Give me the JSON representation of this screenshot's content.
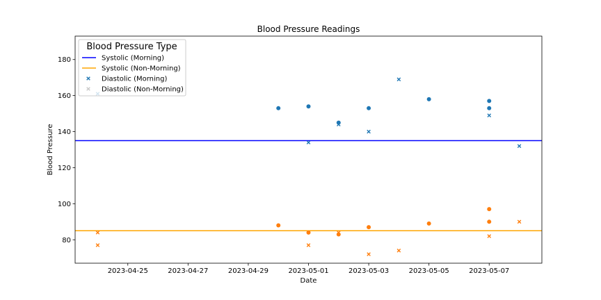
{
  "chart_data": {
    "type": "scatter",
    "title": "Blood Pressure Readings",
    "xlabel": "Date",
    "ylabel": "Blood Pressure",
    "xlim": [
      "2023-04-23 06:00",
      "2023-05-08 18:00"
    ],
    "ylim": [
      67,
      193
    ],
    "x_ticks": [
      "2023-04-25",
      "2023-04-27",
      "2023-04-29",
      "2023-05-01",
      "2023-05-03",
      "2023-05-05",
      "2023-05-07"
    ],
    "y_ticks": [
      80,
      100,
      120,
      140,
      160,
      180
    ],
    "grid": false,
    "legend": {
      "title": "Blood Pressure Type",
      "position": "top-left",
      "entries": [
        {
          "label": "Systolic (Morning)",
          "marker": "line",
          "color": "#0000ff"
        },
        {
          "label": "Systolic (Non-Morning)",
          "marker": "line",
          "color": "#ffa500"
        },
        {
          "label": "Diastolic (Morning)",
          "marker": "x",
          "color": "#1f77b4"
        },
        {
          "label": "Diastolic (Non-Morning)",
          "marker": "x",
          "color": "#c8c8c8"
        }
      ]
    },
    "reference_lines": [
      {
        "y": 135,
        "color": "#0000ff"
      },
      {
        "y": 85,
        "color": "#ffa500"
      }
    ],
    "series": [
      {
        "marker": "circle",
        "color": "#1f77b4",
        "points": [
          {
            "x": "2023-04-30",
            "y": 153
          },
          {
            "x": "2023-05-01",
            "y": 154
          },
          {
            "x": "2023-05-02",
            "y": 145
          },
          {
            "x": "2023-05-03",
            "y": 153
          },
          {
            "x": "2023-05-05",
            "y": 158
          },
          {
            "x": "2023-05-07",
            "y": 157
          },
          {
            "x": "2023-05-07",
            "y": 153
          }
        ]
      },
      {
        "marker": "x",
        "color": "#1f77b4",
        "points": [
          {
            "x": "2023-04-24",
            "y": 161
          },
          {
            "x": "2023-05-01",
            "y": 134
          },
          {
            "x": "2023-05-02",
            "y": 144
          },
          {
            "x": "2023-05-03",
            "y": 140
          },
          {
            "x": "2023-05-04",
            "y": 169
          },
          {
            "x": "2023-05-07",
            "y": 149
          },
          {
            "x": "2023-05-08",
            "y": 132
          }
        ]
      },
      {
        "marker": "circle",
        "color": "#ff7f0e",
        "points": [
          {
            "x": "2023-04-30",
            "y": 88
          },
          {
            "x": "2023-05-01",
            "y": 84
          },
          {
            "x": "2023-05-02",
            "y": 83
          },
          {
            "x": "2023-05-03",
            "y": 87
          },
          {
            "x": "2023-05-05",
            "y": 89
          },
          {
            "x": "2023-05-07",
            "y": 97
          },
          {
            "x": "2023-05-07",
            "y": 90
          }
        ]
      },
      {
        "marker": "x",
        "color": "#ff7f0e",
        "points": [
          {
            "x": "2023-04-24",
            "y": 84
          },
          {
            "x": "2023-04-24",
            "y": 77
          },
          {
            "x": "2023-05-01",
            "y": 77
          },
          {
            "x": "2023-05-02",
            "y": 84
          },
          {
            "x": "2023-05-03",
            "y": 72
          },
          {
            "x": "2023-05-04",
            "y": 74
          },
          {
            "x": "2023-05-07",
            "y": 82
          },
          {
            "x": "2023-05-08",
            "y": 90
          }
        ]
      }
    ]
  }
}
